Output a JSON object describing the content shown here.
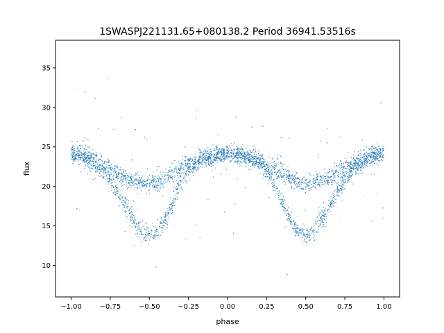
{
  "chart_data": {
    "type": "scatter",
    "title": "1SWASPJ221131.65+080138.2 Period 36941.53516s",
    "xlabel": "phase",
    "ylabel": "flux",
    "xlim": [
      -1.1,
      1.1
    ],
    "ylim": [
      6.0,
      38.5
    ],
    "xticks": [
      "−1.00",
      "−0.75",
      "−0.50",
      "−0.25",
      "0.00",
      "0.25",
      "0.50",
      "0.75",
      "1.00"
    ],
    "xtick_values": [
      -1.0,
      -0.75,
      -0.5,
      -0.25,
      0.0,
      0.25,
      0.5,
      0.75,
      1.0
    ],
    "yticks": [
      "10",
      "15",
      "20",
      "25",
      "30",
      "35"
    ],
    "ytick_values": [
      10,
      15,
      20,
      25,
      30,
      35
    ],
    "grid": false,
    "point_color": "#1f77b4",
    "series": [
      {
        "x": [
          -1.0,
          -0.9,
          -0.8,
          -0.75,
          -0.7,
          -0.65,
          -0.6,
          -0.55,
          -0.5,
          -0.45,
          -0.4,
          -0.35,
          -0.3,
          -0.25,
          -0.2,
          -0.1,
          0.0,
          0.1,
          0.2,
          0.25,
          0.3,
          0.35,
          0.4,
          0.45,
          0.5,
          0.55,
          0.6,
          0.65,
          0.7,
          0.75,
          0.8,
          0.9,
          1.0
        ],
        "y_upper_branch": [
          24.2,
          23.8,
          22.9,
          22.3,
          21.6,
          21.0,
          20.6,
          20.4,
          20.4,
          20.5,
          21.0,
          21.6,
          22.3,
          22.8,
          23.2,
          23.8,
          24.2,
          23.8,
          23.2,
          22.8,
          22.3,
          21.6,
          21.0,
          20.5,
          20.4,
          20.4,
          20.6,
          21.0,
          21.6,
          22.3,
          22.9,
          23.8,
          24.2
        ],
        "y_eclipse_branch": [
          24.2,
          23.6,
          22.0,
          20.8,
          19.2,
          17.4,
          15.6,
          14.2,
          13.8,
          14.2,
          15.8,
          18.0,
          20.4,
          22.0,
          23.0,
          23.8,
          24.2,
          23.8,
          23.0,
          22.0,
          20.4,
          18.0,
          15.8,
          14.2,
          13.8,
          14.2,
          15.6,
          17.4,
          19.2,
          20.8,
          22.0,
          23.6,
          24.2
        ]
      }
    ]
  }
}
